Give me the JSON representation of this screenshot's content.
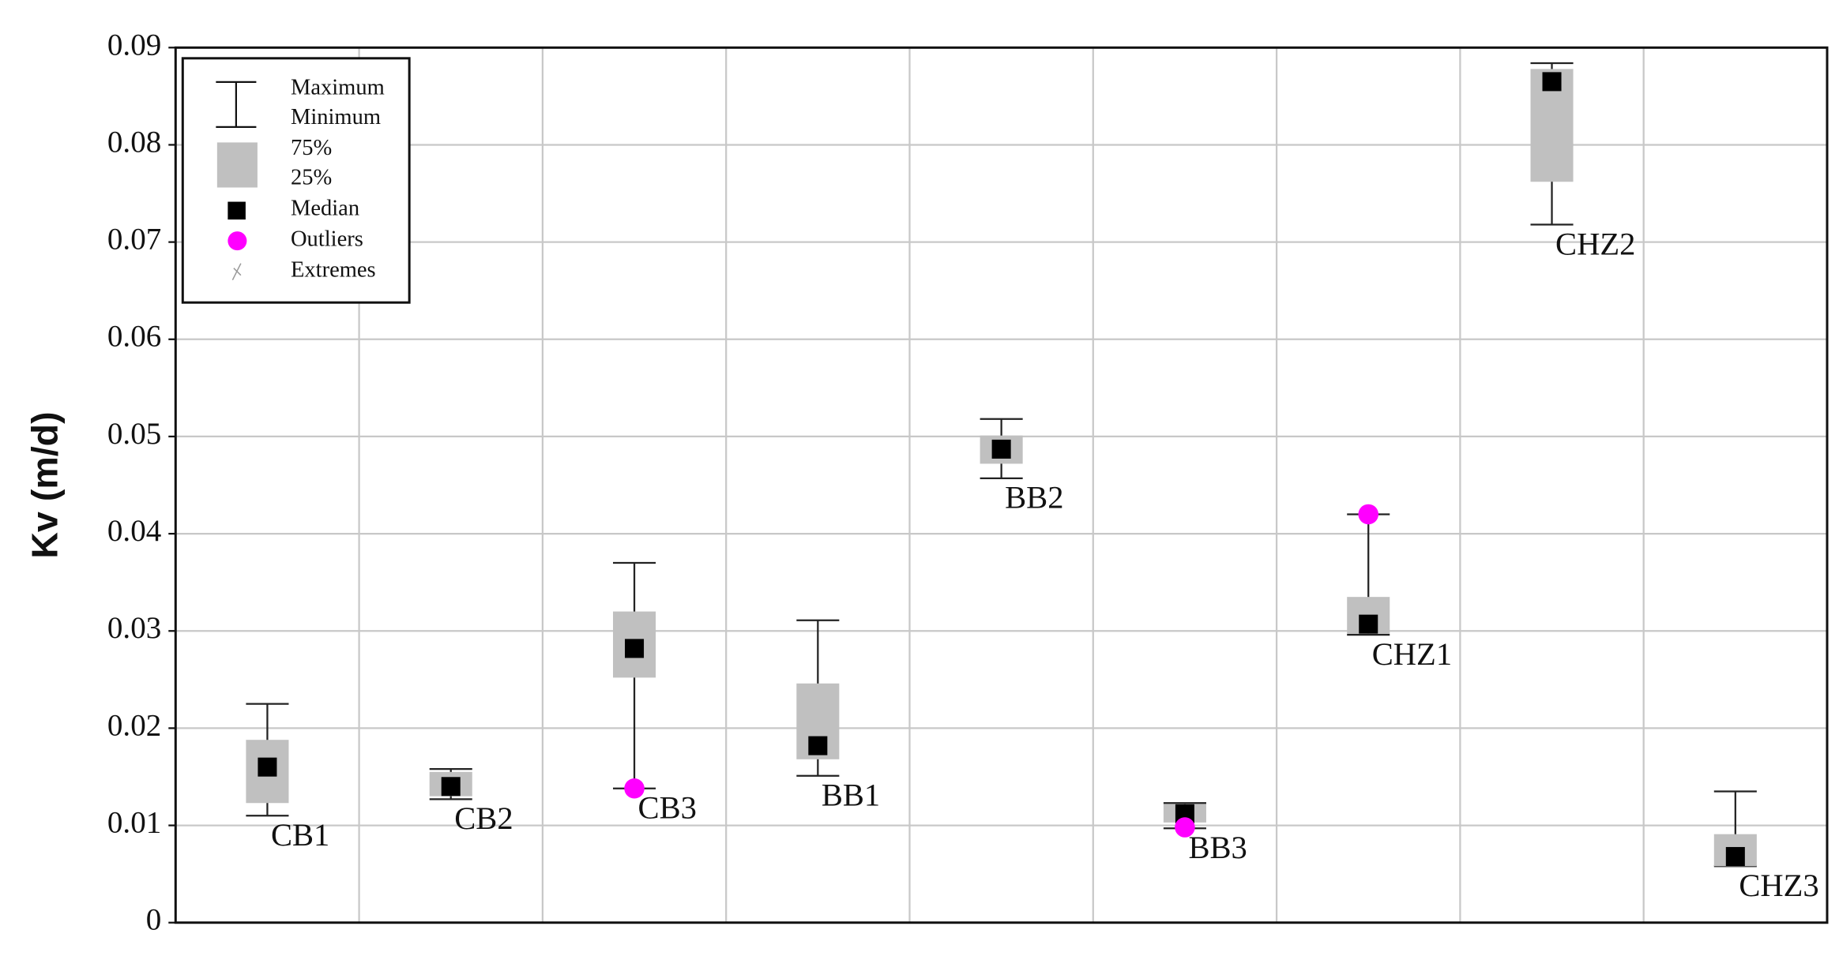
{
  "chart_data": {
    "type": "box",
    "ylabel": "Kv (m/d)",
    "categories": [
      "CB1",
      "CB2",
      "CB3",
      "BB1",
      "BB2",
      "BB3",
      "CHZ1",
      "CHZ2",
      "CHZ3"
    ],
    "max": [
      0.0225,
      0.0158,
      0.037,
      0.0311,
      0.0518,
      0.0123,
      0.042,
      0.0884,
      0.0135
    ],
    "q3": [
      0.0188,
      0.0155,
      0.032,
      0.0246,
      0.0501,
      0.0122,
      0.0335,
      0.0878,
      0.0091
    ],
    "median": [
      0.016,
      0.014,
      0.0282,
      0.0182,
      0.0487,
      0.0112,
      0.0307,
      0.0865,
      0.0068
    ],
    "q1": [
      0.0123,
      0.013,
      0.0252,
      0.0168,
      0.0472,
      0.0103,
      0.0297,
      0.0762,
      0.0058
    ],
    "min": [
      0.011,
      0.0127,
      0.0138,
      0.0151,
      0.0457,
      0.0097,
      0.0296,
      0.0718,
      0.0058
    ],
    "outliers": [
      [],
      [],
      [
        0.0138
      ],
      [],
      [],
      [
        0.0098
      ],
      [
        0.042
      ],
      [],
      []
    ],
    "ylim": [
      0,
      0.09
    ],
    "yticks": [
      0,
      0.01,
      0.02,
      0.03,
      0.04,
      0.05,
      0.06,
      0.07,
      0.08,
      0.09
    ],
    "grid": true,
    "box_color": "#c0c0c0",
    "median_color": "#000000",
    "outlier_color": "#ff00ff",
    "legend_position": "top-left",
    "legend": {
      "max": "Maximum",
      "min": "Minimum",
      "q3": "75%",
      "q1": "25%",
      "median": "Median",
      "outliers": "Outliers",
      "extremes": "Extremes"
    }
  }
}
